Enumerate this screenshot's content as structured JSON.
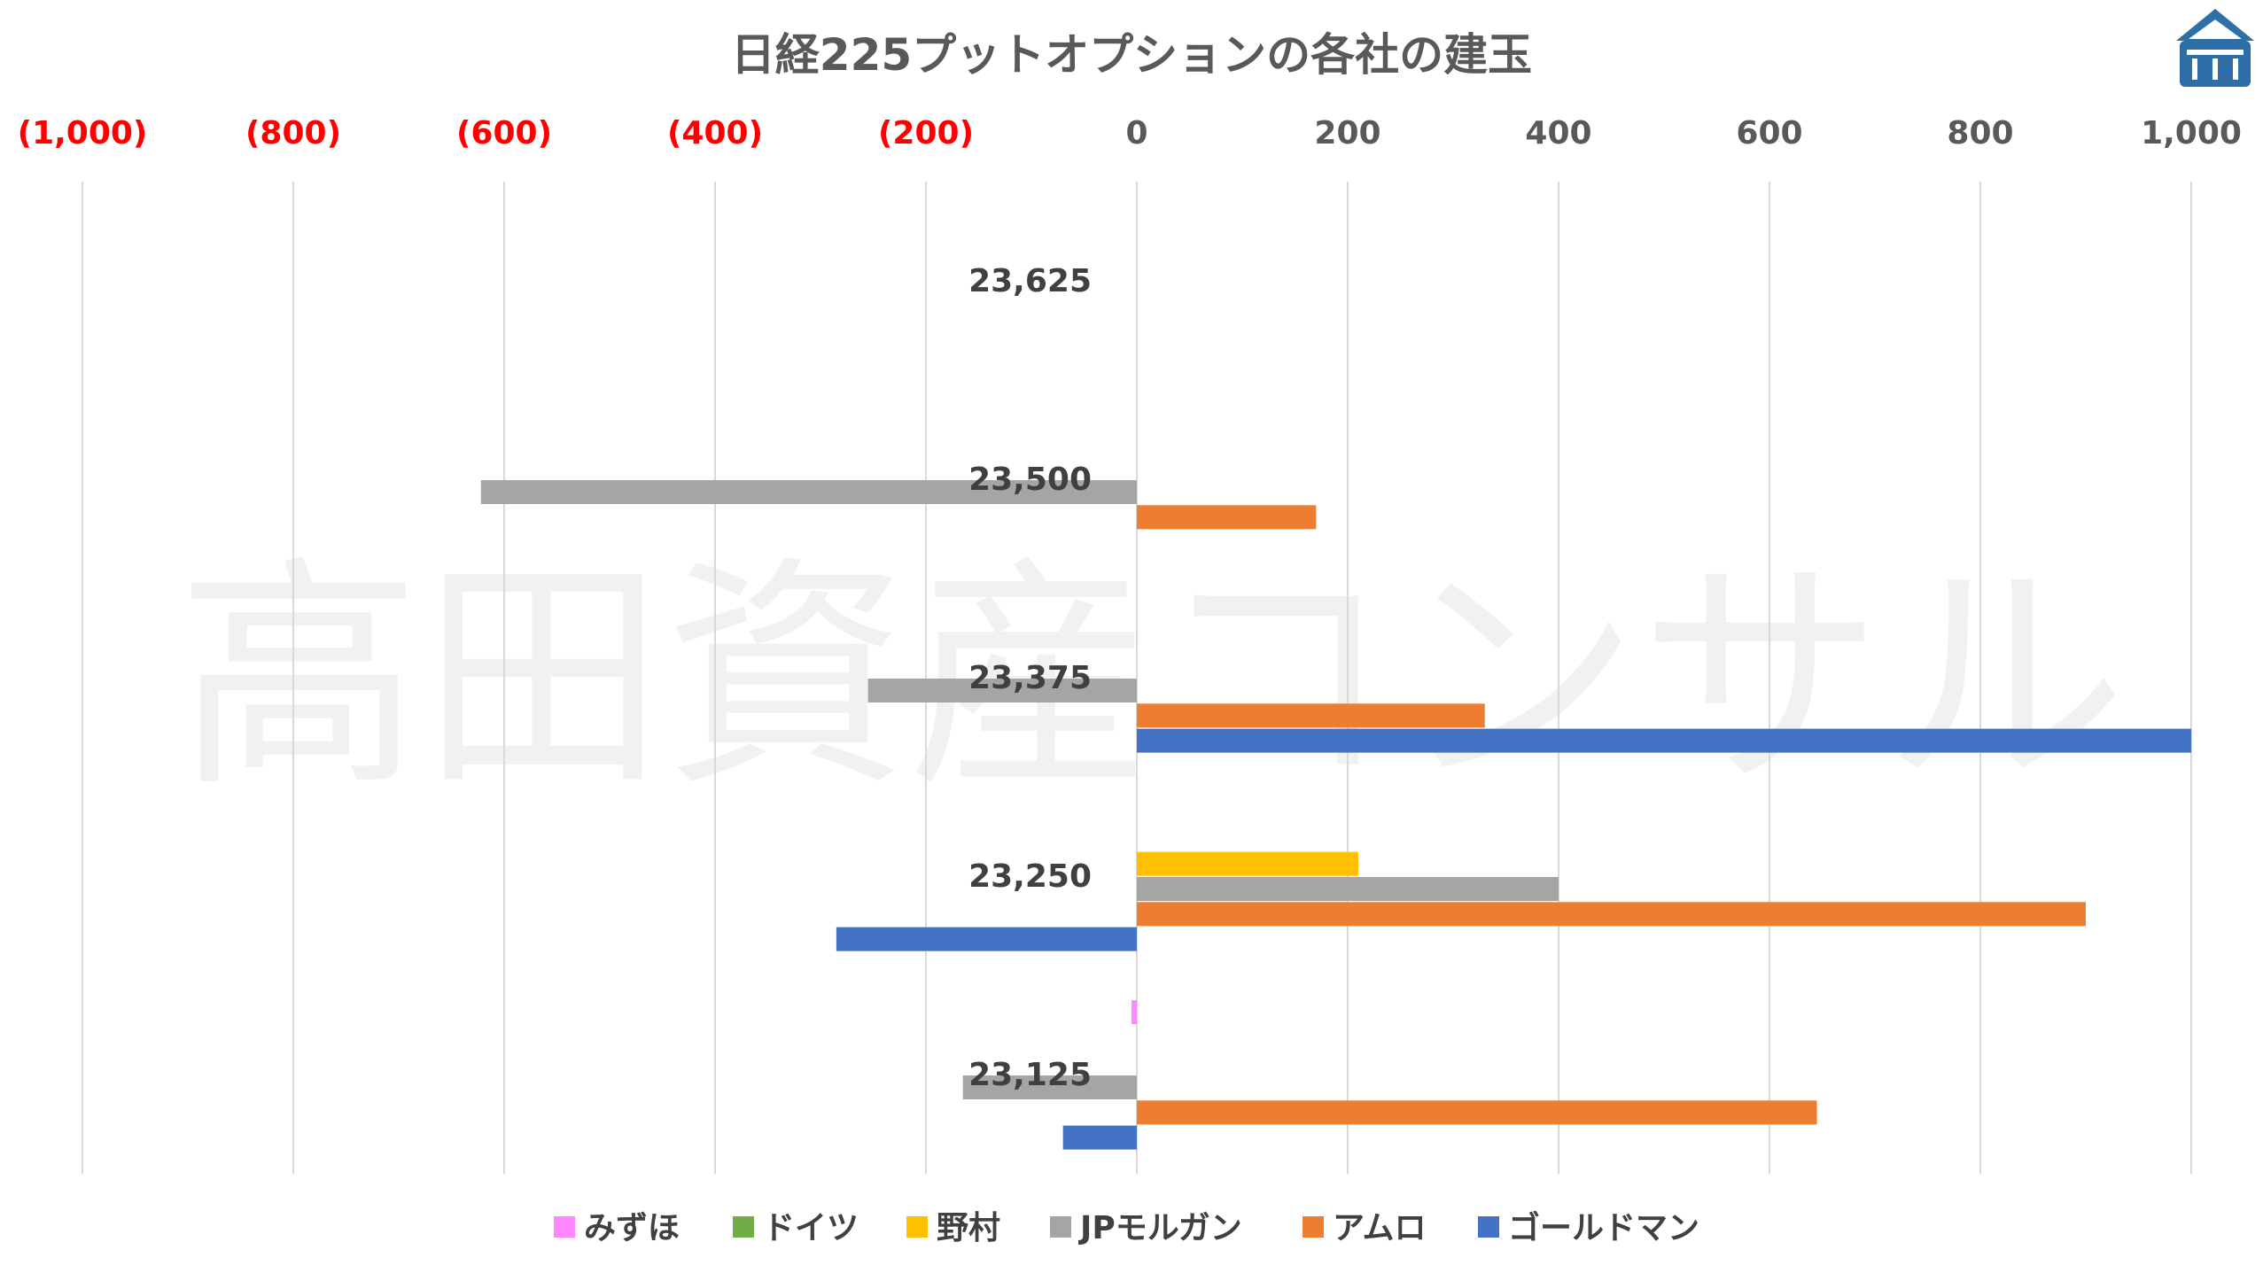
{
  "chart_data": {
    "type": "bar",
    "orientation": "horizontal",
    "title": "日経225プットオプションの各社の建玉",
    "watermark": "高田資産コンサル",
    "xlim": [
      -1000,
      1000
    ],
    "x_ticks": [
      -1000,
      -800,
      -600,
      -400,
      -200,
      0,
      200,
      400,
      600,
      800,
      1000
    ],
    "x_tick_labels": [
      "(1,000)",
      "(800)",
      "(600)",
      "(400)",
      "(200)",
      "0",
      "200",
      "400",
      "600",
      "800",
      "1,000"
    ],
    "negative_tick_color": "#ff0000",
    "gridlines": "vertical",
    "legend_position": "bottom",
    "categories": [
      "23,625",
      "23,500",
      "23,375",
      "23,250",
      "23,125"
    ],
    "series": [
      {
        "name": "みずほ",
        "color": "#ff88ff",
        "values": [
          0,
          0,
          0,
          0,
          -5
        ]
      },
      {
        "name": "ドイツ",
        "color": "#70ad47",
        "values": [
          0,
          0,
          0,
          0,
          0
        ]
      },
      {
        "name": "野村",
        "color": "#ffc000",
        "values": [
          0,
          0,
          0,
          210,
          0
        ]
      },
      {
        "name": "JPモルガン",
        "color": "#a5a5a5",
        "values": [
          0,
          -622,
          -255,
          400,
          -165
        ]
      },
      {
        "name": "アムロ",
        "color": "#ed7d31",
        "values": [
          0,
          170,
          330,
          900,
          645
        ]
      },
      {
        "name": "ゴールドマン",
        "color": "#4472c4",
        "values": [
          0,
          0,
          1000,
          -285,
          -70
        ]
      }
    ]
  }
}
